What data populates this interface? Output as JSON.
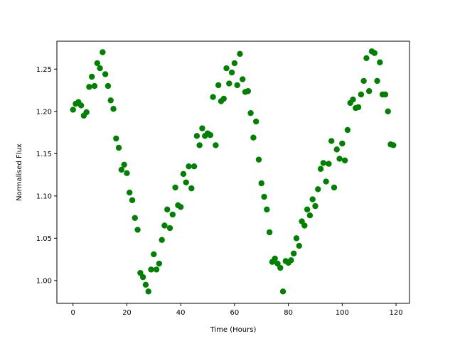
{
  "chart_data": {
    "type": "scatter",
    "xlabel": "Time (Hours)",
    "ylabel": "Normalised Flux",
    "xlim": [
      -6,
      125
    ],
    "ylim": [
      0.973,
      1.283
    ],
    "grid": false,
    "xticks": [
      0,
      20,
      40,
      60,
      80,
      100,
      120
    ],
    "xtick_labels": [
      "0",
      "20",
      "40",
      "60",
      "80",
      "100",
      "120"
    ],
    "yticks": [
      1.0,
      1.05,
      1.1,
      1.15,
      1.2,
      1.25
    ],
    "ytick_labels": [
      "1.00",
      "1.05",
      "1.10",
      "1.15",
      "1.20",
      "1.25"
    ],
    "marker_color": "#008000",
    "series": [
      {
        "x": [
          0,
          1,
          2,
          3,
          4,
          5,
          6,
          7,
          8,
          9,
          10,
          11,
          12,
          13,
          14,
          15,
          16,
          17,
          18,
          19,
          20,
          21,
          22,
          23,
          24,
          25,
          26,
          27,
          28,
          29,
          30,
          31,
          32,
          33,
          34,
          35,
          36,
          37,
          38,
          39,
          40,
          41,
          42,
          43,
          44,
          45,
          46,
          47,
          48,
          49,
          50,
          51,
          52,
          53,
          54,
          55,
          56,
          57,
          58,
          59,
          60,
          61,
          62,
          63,
          64,
          65,
          66,
          67,
          68,
          69,
          70,
          71,
          72,
          73,
          74,
          75,
          76,
          77,
          78,
          79,
          80,
          81,
          82,
          83,
          84,
          85,
          86,
          87,
          88,
          89,
          90,
          91,
          92,
          93,
          94,
          95,
          96,
          97,
          98,
          99,
          100,
          101,
          102,
          103,
          104,
          105,
          106,
          107,
          108,
          109,
          110,
          111,
          112,
          113,
          114,
          115,
          116,
          117,
          118,
          119
        ],
        "y": [
          1.202,
          1.209,
          1.211,
          1.207,
          1.195,
          1.199,
          1.229,
          1.241,
          1.23,
          1.257,
          1.251,
          1.27,
          1.244,
          1.23,
          1.213,
          1.203,
          1.168,
          1.157,
          1.131,
          1.137,
          1.127,
          1.104,
          1.095,
          1.074,
          1.06,
          1.009,
          1.004,
          0.995,
          0.987,
          1.013,
          1.031,
          1.013,
          1.02,
          1.048,
          1.065,
          1.084,
          1.062,
          1.078,
          1.11,
          1.089,
          1.087,
          1.126,
          1.116,
          1.135,
          1.109,
          1.135,
          1.171,
          1.16,
          1.18,
          1.171,
          1.174,
          1.172,
          1.217,
          1.16,
          1.231,
          1.212,
          1.215,
          1.251,
          1.233,
          1.246,
          1.257,
          1.231,
          1.268,
          1.238,
          1.223,
          1.224,
          1.198,
          1.169,
          1.188,
          1.143,
          1.115,
          1.099,
          1.084,
          1.057,
          1.022,
          1.026,
          1.02,
          1.015,
          0.987,
          1.023,
          1.021,
          1.024,
          1.032,
          1.05,
          1.041,
          1.07,
          1.065,
          1.084,
          1.077,
          1.096,
          1.088,
          1.108,
          1.132,
          1.139,
          1.117,
          1.138,
          1.165,
          1.11,
          1.155,
          1.144,
          1.162,
          1.142,
          1.178,
          1.21,
          1.214,
          1.204,
          1.205,
          1.22,
          1.236,
          1.263,
          1.224,
          1.271,
          1.269,
          1.236,
          1.258,
          1.22,
          1.22,
          1.2,
          1.161,
          1.16
        ]
      }
    ]
  }
}
